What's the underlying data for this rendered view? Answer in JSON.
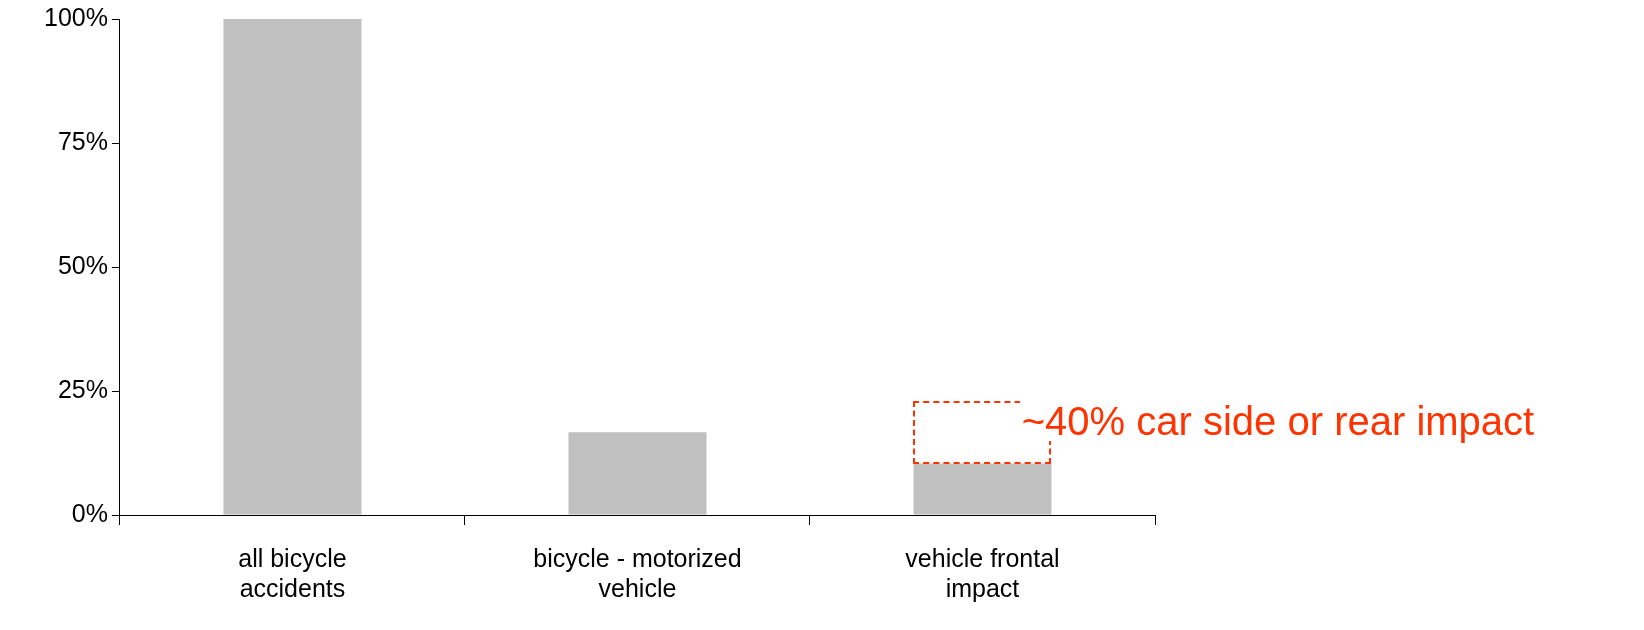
{
  "chart_data": {
    "type": "bar",
    "categories": [
      "all bicycle accidents",
      "bicycle - motorized vehicle",
      "vehicle frontal impact"
    ],
    "values": [
      100,
      16.7,
      10.4
    ],
    "color": "#c0c0c0",
    "ylim": [
      0,
      100
    ],
    "yticks": [
      {
        "value": 0,
        "label": "0%"
      },
      {
        "value": 25,
        "label": "25%"
      },
      {
        "value": 50,
        "label": "50%"
      },
      {
        "value": 75,
        "label": "75%"
      },
      {
        "value": 100,
        "label": "100%"
      }
    ],
    "grid": false,
    "legend": false,
    "annotations": [
      "~40% car side or rear impact"
    ]
  }
}
